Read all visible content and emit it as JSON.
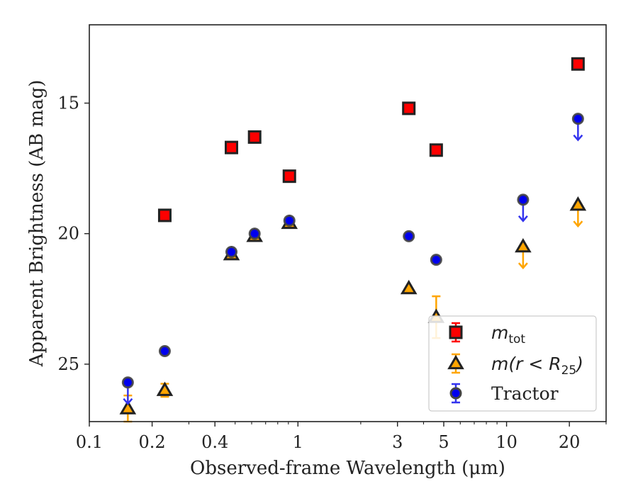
{
  "chart_data": {
    "type": "scatter",
    "xlabel": "Observed-frame Wavelength (μm)",
    "ylabel": "Apparent Brightness (AB mag)",
    "xscale": "log",
    "xlim": [
      0.1,
      30
    ],
    "ylim": [
      27.2,
      12.0
    ],
    "y_inverted": true,
    "x_ticks": [
      0.1,
      0.2,
      0.4,
      1,
      3,
      5,
      10,
      20
    ],
    "x_tick_labels": [
      "0.1",
      "0.2",
      "0.4",
      "1",
      "3",
      "5",
      "10",
      "20"
    ],
    "y_ticks": [
      15,
      20,
      25
    ],
    "y_tick_labels": [
      "15",
      "20",
      "25"
    ],
    "grid": false,
    "legend_position": "lower-right",
    "series": [
      {
        "key": "mtot",
        "legend_main": "m",
        "legend_sub": "tot",
        "marker": "square",
        "color": "#ff0000",
        "edge_color": "#222222",
        "error_color": "#ff0000",
        "points": [
          {
            "x": 0.23,
            "y": 19.3
          },
          {
            "x": 0.48,
            "y": 16.7
          },
          {
            "x": 0.62,
            "y": 16.3
          },
          {
            "x": 0.91,
            "y": 17.8
          },
          {
            "x": 3.4,
            "y": 15.2
          },
          {
            "x": 4.6,
            "y": 16.8
          },
          {
            "x": 22,
            "y": 13.5
          }
        ]
      },
      {
        "key": "mr25",
        "legend_main": "m(r < R",
        "legend_sub": "25",
        "legend_tail": ")",
        "marker": "triangle",
        "color": "#ffa500",
        "edge_color": "#222222",
        "error_color": "#ffa500",
        "points": [
          {
            "x": 0.153,
            "y": 26.7,
            "err": [
              0.5,
              0.5
            ]
          },
          {
            "x": 0.23,
            "y": 26.0,
            "err": [
              0.25,
              0.25
            ]
          },
          {
            "x": 0.48,
            "y": 20.8
          },
          {
            "x": 0.62,
            "y": 20.1
          },
          {
            "x": 0.91,
            "y": 19.6
          },
          {
            "x": 3.4,
            "y": 22.1
          },
          {
            "x": 4.6,
            "y": 23.2,
            "err": [
              0.8,
              0.8
            ]
          },
          {
            "x": 12,
            "y": 20.5,
            "upper_limit": true
          },
          {
            "x": 22,
            "y": 18.9,
            "upper_limit": true
          }
        ]
      },
      {
        "key": "tractor",
        "legend_main": "Tractor",
        "marker": "circle",
        "color": "#0000ee",
        "edge_color": "#444444",
        "error_color": "#3333ee",
        "points": [
          {
            "x": 0.153,
            "y": 25.7,
            "upper_limit": true
          },
          {
            "x": 0.23,
            "y": 24.5
          },
          {
            "x": 0.48,
            "y": 20.7
          },
          {
            "x": 0.62,
            "y": 20.0
          },
          {
            "x": 0.91,
            "y": 19.5
          },
          {
            "x": 3.4,
            "y": 20.1
          },
          {
            "x": 4.6,
            "y": 21.0
          },
          {
            "x": 12,
            "y": 18.7,
            "upper_limit": true
          },
          {
            "x": 22,
            "y": 15.6,
            "upper_limit": true
          }
        ]
      }
    ]
  }
}
